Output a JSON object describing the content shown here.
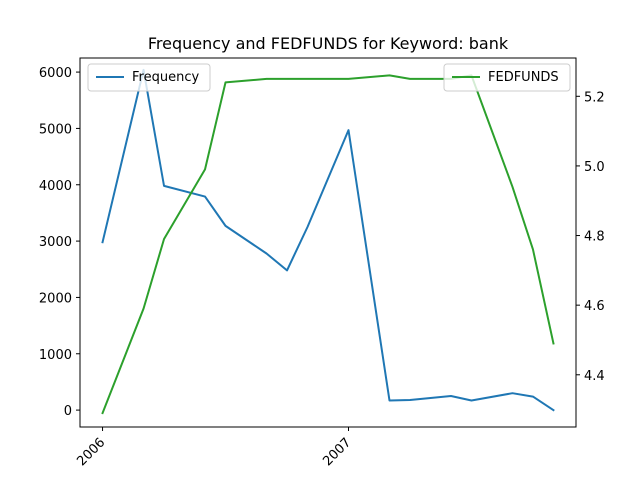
{
  "chart_data": {
    "type": "line",
    "title": "Frequency and FEDFUNDS for Keyword: bank",
    "xlabel": "",
    "ylabel_left": "",
    "ylabel_right": "",
    "x_tick_labels": [
      "2006",
      "2007"
    ],
    "x_tick_positions": [
      0,
      12
    ],
    "x_range": [
      -1.1,
      23.1
    ],
    "x_points": [
      0,
      2,
      3,
      5,
      6,
      8,
      9,
      10,
      12,
      14,
      15,
      17,
      18,
      20,
      21,
      22
    ],
    "left_axis": {
      "ylim": [
        -300,
        6250
      ],
      "ticks": [
        0,
        1000,
        2000,
        3000,
        4000,
        5000,
        6000
      ]
    },
    "right_axis": {
      "ylim": [
        4.25,
        5.31
      ],
      "ticks": [
        4.4,
        4.6,
        4.8,
        5.0,
        5.2
      ],
      "tick_labels": [
        "4.4",
        "4.6",
        "4.8",
        "5.0",
        "5.2"
      ]
    },
    "series": [
      {
        "name": "Frequency",
        "axis": "left",
        "color": "#1f77b4",
        "values": [
          2980,
          6040,
          3980,
          3790,
          3270,
          2780,
          2480,
          3250,
          4970,
          170,
          180,
          250,
          170,
          300,
          240,
          0
        ]
      },
      {
        "name": "FEDFUNDS",
        "axis": "right",
        "color": "#2ca02c",
        "values": [
          4.29,
          4.59,
          4.79,
          4.99,
          5.24,
          5.25,
          5.25,
          5.25,
          5.25,
          5.26,
          5.25,
          5.25,
          5.26,
          4.94,
          4.76,
          4.49
        ]
      }
    ],
    "legend_left": "Frequency",
    "legend_right": "FEDFUNDS",
    "legend_left_position": "upper-left",
    "legend_right_position": "upper-right",
    "grid": false
  }
}
